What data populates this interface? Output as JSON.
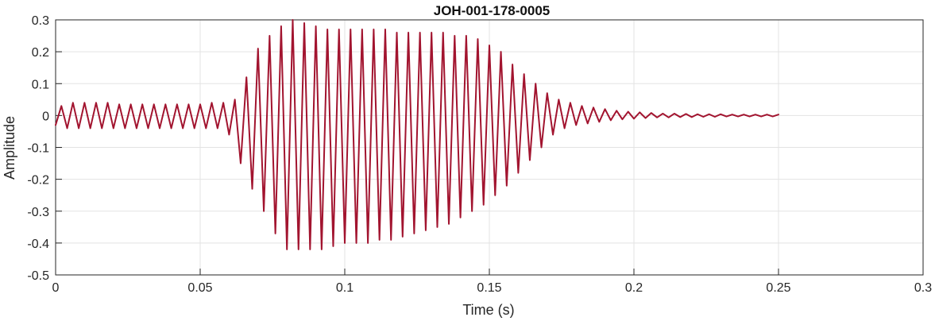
{
  "chart_data": {
    "type": "line",
    "title": "JOH-001-178-0005",
    "xlabel": "Time (s)",
    "ylabel": "Amplitude",
    "xlim": [
      0,
      0.3
    ],
    "ylim": [
      -0.5,
      0.3
    ],
    "xticks": [
      {
        "value": 0,
        "label": "0"
      },
      {
        "value": 0.05,
        "label": "0.05"
      },
      {
        "value": 0.1,
        "label": "0.1"
      },
      {
        "value": 0.15,
        "label": "0.15"
      },
      {
        "value": 0.2,
        "label": "0.2"
      },
      {
        "value": 0.25,
        "label": "0.25"
      },
      {
        "value": 0.3,
        "label": "0.3"
      }
    ],
    "yticks": [
      {
        "value": 0.3,
        "label": "0.3"
      },
      {
        "value": 0.2,
        "label": "0.2"
      },
      {
        "value": 0.1,
        "label": "0.1"
      },
      {
        "value": 0,
        "label": "0"
      },
      {
        "value": -0.1,
        "label": "-0.1"
      },
      {
        "value": -0.2,
        "label": "-0.2"
      },
      {
        "value": -0.3,
        "label": "-0.3"
      },
      {
        "value": -0.4,
        "label": "-0.4"
      },
      {
        "value": -0.5,
        "label": "-0.5"
      }
    ],
    "grid": true,
    "line_color": "#A2142F",
    "series": [
      {
        "x": [
          0,
          0.002,
          0.004,
          0.006,
          0.008,
          0.01,
          0.012,
          0.014,
          0.016,
          0.018,
          0.02,
          0.022,
          0.024,
          0.026,
          0.028,
          0.03,
          0.032,
          0.034,
          0.036,
          0.038,
          0.04,
          0.042,
          0.044,
          0.046,
          0.048,
          0.05,
          0.052,
          0.054,
          0.056,
          0.058,
          0.06,
          0.062,
          0.064,
          0.066,
          0.068,
          0.07,
          0.072,
          0.074,
          0.076,
          0.078,
          0.08,
          0.082,
          0.084,
          0.086,
          0.088,
          0.09,
          0.092,
          0.094,
          0.096,
          0.098,
          0.1,
          0.102,
          0.104,
          0.106,
          0.108,
          0.11,
          0.112,
          0.114,
          0.116,
          0.118,
          0.12,
          0.122,
          0.124,
          0.126,
          0.128,
          0.13,
          0.132,
          0.134,
          0.136,
          0.138,
          0.14,
          0.142,
          0.144,
          0.146,
          0.148,
          0.15,
          0.152,
          0.154,
          0.156,
          0.158,
          0.16,
          0.162,
          0.164,
          0.166,
          0.168,
          0.17,
          0.172,
          0.174,
          0.176,
          0.178,
          0.18,
          0.182,
          0.184,
          0.186,
          0.188,
          0.19,
          0.192,
          0.194,
          0.196,
          0.198,
          0.2,
          0.202,
          0.204,
          0.206,
          0.208,
          0.21,
          0.212,
          0.214,
          0.216,
          0.218,
          0.22,
          0.222,
          0.224,
          0.226,
          0.228,
          0.23,
          0.232,
          0.234,
          0.236,
          0.238,
          0.24,
          0.242,
          0.244,
          0.246,
          0.248,
          0.25
        ],
        "y": [
          -0.03,
          0.03,
          -0.04,
          0.04,
          -0.04,
          0.04,
          -0.04,
          0.04,
          -0.04,
          0.04,
          -0.04,
          0.035,
          -0.04,
          0.035,
          -0.04,
          0.035,
          -0.04,
          0.035,
          -0.04,
          0.035,
          -0.04,
          0.035,
          -0.04,
          0.035,
          -0.04,
          0.035,
          -0.04,
          0.04,
          -0.04,
          0.04,
          -0.06,
          0.05,
          -0.15,
          0.12,
          -0.23,
          0.21,
          -0.3,
          0.25,
          -0.37,
          0.28,
          -0.42,
          0.3,
          -0.42,
          0.29,
          -0.42,
          0.28,
          -0.42,
          0.27,
          -0.41,
          0.27,
          -0.4,
          0.27,
          -0.4,
          0.27,
          -0.4,
          0.27,
          -0.39,
          0.27,
          -0.39,
          0.26,
          -0.38,
          0.26,
          -0.37,
          0.26,
          -0.36,
          0.26,
          -0.35,
          0.26,
          -0.34,
          0.25,
          -0.32,
          0.25,
          -0.3,
          0.24,
          -0.28,
          0.22,
          -0.25,
          0.2,
          -0.22,
          0.16,
          -0.18,
          0.13,
          -0.14,
          0.1,
          -0.1,
          0.07,
          -0.06,
          0.05,
          -0.04,
          0.04,
          -0.03,
          0.03,
          -0.025,
          0.025,
          -0.02,
          0.02,
          -0.015,
          0.015,
          -0.012,
          0.012,
          -0.01,
          0.01,
          -0.008,
          0.008,
          -0.006,
          0.006,
          -0.006,
          0.006,
          -0.005,
          0.005,
          -0.005,
          0.004,
          -0.004,
          0.004,
          -0.004,
          0.004,
          -0.003,
          0.003,
          -0.003,
          0.003,
          -0.003,
          0.003,
          -0.003,
          0.003,
          -0.003,
          0.003
        ]
      }
    ]
  }
}
